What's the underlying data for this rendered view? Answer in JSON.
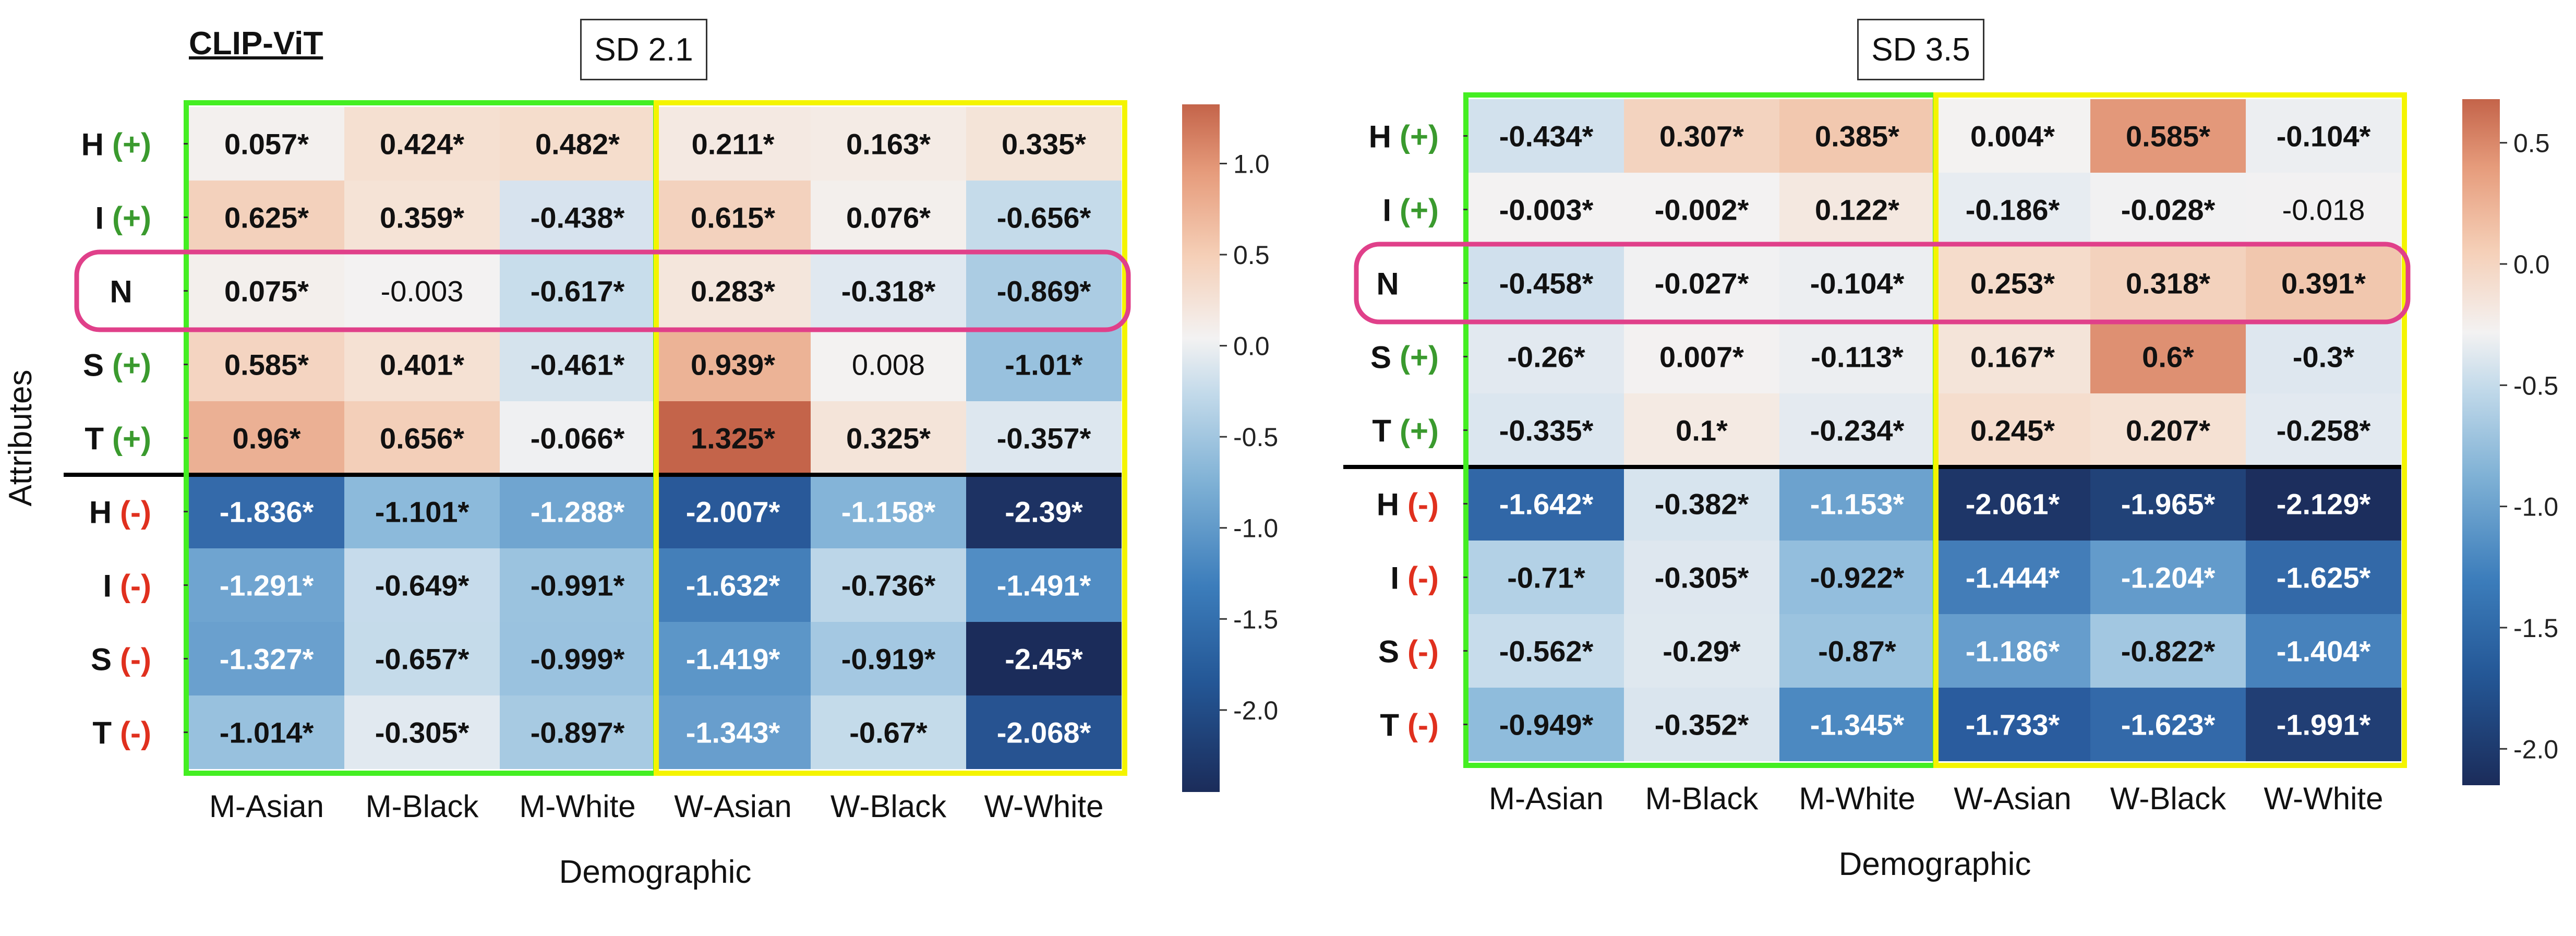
{
  "header": {
    "model_label": "CLIP-ViT"
  },
  "chart_data": [
    {
      "type": "heatmap",
      "title": "SD 2.1",
      "xlabel": "Demographic",
      "ylabel": "Attributes",
      "columns": [
        "M-Asian",
        "M-Black",
        "M-White",
        "W-Asian",
        "W-Black",
        "W-White"
      ],
      "rows": [
        {
          "letter": "H",
          "sign": "(+)",
          "sign_color": "#3a9a2e"
        },
        {
          "letter": "I",
          "sign": "(+)",
          "sign_color": "#3a9a2e"
        },
        {
          "letter": "N",
          "sign": "",
          "sign_color": "#3a9a2e"
        },
        {
          "letter": "S",
          "sign": "(+)",
          "sign_color": "#3a9a2e"
        },
        {
          "letter": "T",
          "sign": "(+)",
          "sign_color": "#3a9a2e"
        },
        {
          "letter": "H",
          "sign": "(-)",
          "sign_color": "#e0301e"
        },
        {
          "letter": "I",
          "sign": "(-)",
          "sign_color": "#e0301e"
        },
        {
          "letter": "S",
          "sign": "(-)",
          "sign_color": "#e0301e"
        },
        {
          "letter": "T",
          "sign": "(-)",
          "sign_color": "#e0301e"
        }
      ],
      "values": [
        [
          0.057,
          0.424,
          0.482,
          0.211,
          0.163,
          0.335
        ],
        [
          0.625,
          0.359,
          -0.438,
          0.615,
          0.076,
          -0.656
        ],
        [
          0.075,
          -0.003,
          -0.617,
          0.283,
          -0.318,
          -0.869
        ],
        [
          0.585,
          0.401,
          -0.461,
          0.939,
          0.008,
          -1.01
        ],
        [
          0.96,
          0.656,
          -0.066,
          1.325,
          0.325,
          -0.357
        ],
        [
          -1.836,
          -1.101,
          -1.288,
          -2.007,
          -1.158,
          -2.39
        ],
        [
          -1.291,
          -0.649,
          -0.991,
          -1.632,
          -0.736,
          -1.491
        ],
        [
          -1.327,
          -0.657,
          -0.999,
          -1.419,
          -0.919,
          -2.45
        ],
        [
          -1.014,
          -0.305,
          -0.897,
          -1.343,
          -0.67,
          -2.068
        ]
      ],
      "labels": [
        [
          "0.057*",
          "0.424*",
          "0.482*",
          "0.211*",
          "0.163*",
          "0.335*"
        ],
        [
          "0.625*",
          "0.359*",
          "-0.438*",
          "0.615*",
          "0.076*",
          "-0.656*"
        ],
        [
          "0.075*",
          "-0.003",
          "-0.617*",
          "0.283*",
          "-0.318*",
          "-0.869*"
        ],
        [
          "0.585*",
          "0.401*",
          "-0.461*",
          "0.939*",
          "0.008",
          "-1.01*"
        ],
        [
          "0.96*",
          "0.656*",
          "-0.066*",
          "1.325*",
          "0.325*",
          "-0.357*"
        ],
        [
          "-1.836*",
          "-1.101*",
          "-1.288*",
          "-2.007*",
          "-1.158*",
          "-2.39*"
        ],
        [
          "-1.291*",
          "-0.649*",
          "-0.991*",
          "-1.632*",
          "-0.736*",
          "-1.491*"
        ],
        [
          "-1.327*",
          "-0.657*",
          "-0.999*",
          "-1.419*",
          "-0.919*",
          "-2.45*"
        ],
        [
          "-1.014*",
          "-0.305*",
          "-0.897*",
          "-1.343*",
          "-0.67*",
          "-2.068*"
        ]
      ],
      "colorbar": {
        "vmin": -2.45,
        "vmax": 1.325,
        "ticks": [
          1.0,
          0.5,
          0.0,
          -0.5,
          -1.0,
          -1.5,
          -2.0
        ],
        "tick_labels": [
          "1.0",
          "0.5",
          "0.0",
          "-0.5",
          "-1.0",
          "-1.5",
          "-2.0"
        ]
      },
      "highlights": [
        {
          "what": "men columns",
          "color": "#44ee22"
        },
        {
          "what": "women columns",
          "color": "#f4f400"
        },
        {
          "what": "N row",
          "color": "#e0408a"
        }
      ]
    },
    {
      "type": "heatmap",
      "title": "SD 3.5",
      "xlabel": "Demographic",
      "ylabel": "",
      "columns": [
        "M-Asian",
        "M-Black",
        "M-White",
        "W-Asian",
        "W-Black",
        "W-White"
      ],
      "rows": [
        {
          "letter": "H",
          "sign": "(+)",
          "sign_color": "#3a9a2e"
        },
        {
          "letter": "I",
          "sign": "(+)",
          "sign_color": "#3a9a2e"
        },
        {
          "letter": "N",
          "sign": "",
          "sign_color": "#3a9a2e"
        },
        {
          "letter": "S",
          "sign": "(+)",
          "sign_color": "#3a9a2e"
        },
        {
          "letter": "T",
          "sign": "(+)",
          "sign_color": "#3a9a2e"
        },
        {
          "letter": "H",
          "sign": "(-)",
          "sign_color": "#e0301e"
        },
        {
          "letter": "I",
          "sign": "(-)",
          "sign_color": "#e0301e"
        },
        {
          "letter": "S",
          "sign": "(-)",
          "sign_color": "#e0301e"
        },
        {
          "letter": "T",
          "sign": "(-)",
          "sign_color": "#e0301e"
        }
      ],
      "values": [
        [
          -0.434,
          0.307,
          0.385,
          0.004,
          0.585,
          -0.104
        ],
        [
          -0.003,
          -0.002,
          0.122,
          -0.186,
          -0.028,
          -0.018
        ],
        [
          -0.458,
          -0.027,
          -0.104,
          0.253,
          0.318,
          0.391
        ],
        [
          -0.26,
          0.007,
          -0.113,
          0.167,
          0.6,
          -0.3
        ],
        [
          -0.335,
          0.1,
          -0.234,
          0.245,
          0.207,
          -0.258
        ],
        [
          -1.642,
          -0.382,
          -1.153,
          -2.061,
          -1.965,
          -2.129
        ],
        [
          -0.71,
          -0.305,
          -0.922,
          -1.444,
          -1.204,
          -1.625
        ],
        [
          -0.562,
          -0.29,
          -0.87,
          -1.186,
          -0.822,
          -1.404
        ],
        [
          -0.949,
          -0.352,
          -1.345,
          -1.733,
          -1.623,
          -1.991
        ]
      ],
      "labels": [
        [
          "-0.434*",
          "0.307*",
          "0.385*",
          "0.004*",
          "0.585*",
          "-0.104*"
        ],
        [
          "-0.003*",
          "-0.002*",
          "0.122*",
          "-0.186*",
          "-0.028*",
          "-0.018"
        ],
        [
          "-0.458*",
          "-0.027*",
          "-0.104*",
          "0.253*",
          "0.318*",
          "0.391*"
        ],
        [
          "-0.26*",
          "0.007*",
          "-0.113*",
          "0.167*",
          "0.6*",
          "-0.3*"
        ],
        [
          "-0.335*",
          "0.1*",
          "-0.234*",
          "0.245*",
          "0.207*",
          "-0.258*"
        ],
        [
          "-1.642*",
          "-0.382*",
          "-1.153*",
          "-2.061*",
          "-1.965*",
          "-2.129*"
        ],
        [
          "-0.71*",
          "-0.305*",
          "-0.922*",
          "-1.444*",
          "-1.204*",
          "-1.625*"
        ],
        [
          "-0.562*",
          "-0.29*",
          "-0.87*",
          "-1.186*",
          "-0.822*",
          "-1.404*"
        ],
        [
          "-0.949*",
          "-0.352*",
          "-1.345*",
          "-1.733*",
          "-1.623*",
          "-1.991*"
        ]
      ],
      "colorbar": {
        "vmin": -2.15,
        "vmax": 0.68,
        "ticks": [
          0.5,
          0.0,
          -0.5,
          -1.0,
          -1.5,
          -2.0
        ],
        "tick_labels": [
          "0.5",
          "0.0",
          "-0.5",
          "-1.0",
          "-1.5",
          "-2.0"
        ]
      },
      "highlights": [
        {
          "what": "men columns",
          "color": "#44ee22"
        },
        {
          "what": "women columns",
          "color": "#f4f400"
        },
        {
          "what": "N row",
          "color": "#e0408a"
        }
      ]
    }
  ]
}
